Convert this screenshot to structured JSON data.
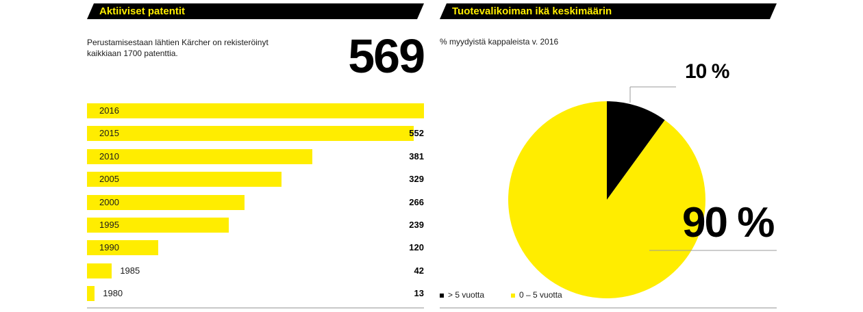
{
  "left_panel": {
    "header": "Aktiiviset patentit",
    "intro": "Perustamisestaan lähtien Kärcher on rekisteröinyt kaikkiaan 1700 patenttia.",
    "big_number": "569"
  },
  "right_panel": {
    "header": "Tuotevalikoiman ikä keskimäärin",
    "subtitle": "% myydyistä kappaleista v. 2016",
    "label_small": "10 %",
    "label_large": "90 %"
  },
  "colors": {
    "accent": "#ffed00",
    "dark": "#000000",
    "rule": "#c8c8c8"
  },
  "chart_data": [
    {
      "type": "bar",
      "orientation": "horizontal",
      "categories": [
        "2016",
        "2015",
        "2010",
        "2005",
        "2000",
        "1995",
        "1990",
        "1985",
        "1980"
      ],
      "values": [
        569,
        552,
        381,
        329,
        266,
        239,
        120,
        42,
        13
      ],
      "value_labels": [
        "",
        "552",
        "381",
        "329",
        "266",
        "239",
        "120",
        "42",
        "13"
      ],
      "xlim": [
        0,
        569
      ]
    },
    {
      "type": "pie",
      "series": [
        {
          "name": "> 5 vuotta",
          "value": 10,
          "color": "#000000"
        },
        {
          "name": "0 – 5 vuotta",
          "value": 90,
          "color": "#ffed00"
        }
      ]
    }
  ]
}
